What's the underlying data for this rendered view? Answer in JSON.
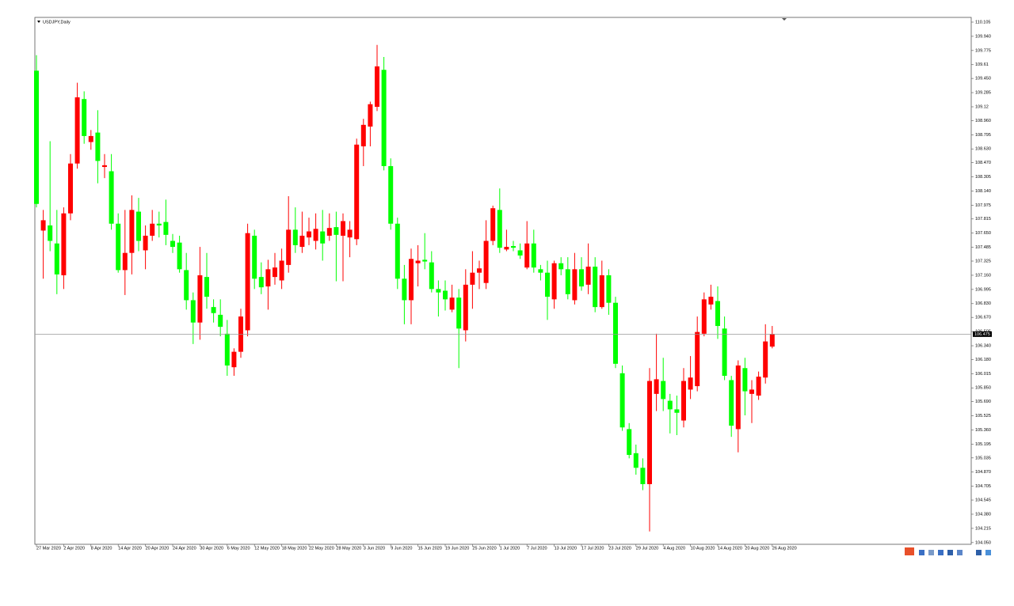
{
  "chart_data": {
    "type": "candlestick",
    "title": "USDJPY,Daily",
    "up_color": "#ff0000",
    "down_color": "#00ff00",
    "grid": false,
    "current_price": 106.475,
    "ylim": [
      104.03,
      110.16
    ],
    "yticks": [
      110.105,
      {
        "value": 109.94,
        "label": "109.940"
      },
      109.775,
      109.61,
      {
        "value": 109.45,
        "label": "109.450"
      },
      109.285,
      109.12,
      {
        "value": 108.96,
        "label": "108.960"
      },
      108.795,
      {
        "value": 108.63,
        "label": "108.630"
      },
      {
        "value": 108.47,
        "label": "108.470"
      },
      108.305,
      {
        "value": 108.14,
        "label": "108.140"
      },
      107.975,
      107.815,
      {
        "value": 107.65,
        "label": "107.650"
      },
      107.485,
      107.325,
      {
        "value": 107.16,
        "label": "107.160"
      },
      106.995,
      {
        "value": 106.83,
        "label": "106.830"
      },
      {
        "value": 106.67,
        "label": "106.670"
      },
      106.505,
      {
        "value": 106.34,
        "label": "106.340"
      },
      {
        "value": 106.18,
        "label": "106.180"
      },
      106.015,
      {
        "value": 105.85,
        "label": "105.850"
      },
      {
        "value": 105.69,
        "label": "105.690"
      },
      105.525,
      {
        "value": 105.36,
        "label": "105.360"
      },
      105.195,
      105.035,
      {
        "value": 104.87,
        "label": "104.870"
      },
      104.705,
      104.545,
      {
        "value": 104.38,
        "label": "104.380"
      },
      104.215,
      {
        "value": 104.05,
        "label": "104.050"
      }
    ],
    "categories": [
      "27 Mar 2020",
      null,
      null,
      null,
      "2 Apr 2020",
      null,
      null,
      null,
      "8 Apr 2020",
      null,
      null,
      null,
      "14 Apr 2020",
      null,
      null,
      null,
      "20 Apr 2020",
      null,
      null,
      null,
      "24 Apr 2020",
      null,
      null,
      null,
      "30 Apr 2020",
      null,
      null,
      null,
      "6 May 2020",
      null,
      null,
      null,
      "12 May 2020",
      null,
      null,
      null,
      "18 May 2020",
      null,
      null,
      null,
      "22 May 2020",
      null,
      null,
      null,
      "28 May 2020",
      null,
      null,
      null,
      "3 Jun 2020",
      null,
      null,
      null,
      "9 Jun 2020",
      null,
      null,
      null,
      "15 Jun 2020",
      null,
      null,
      null,
      "19 Jun 2020",
      null,
      null,
      null,
      "25 Jun 2020",
      null,
      null,
      null,
      "1 Jul 2020",
      null,
      null,
      null,
      "7 Jul 2020",
      null,
      null,
      null,
      "13 Jul 2020",
      null,
      null,
      null,
      "17 Jul 2020",
      null,
      null,
      null,
      "23 Jul 2020",
      null,
      null,
      null,
      "29 Jul 2020",
      null,
      null,
      null,
      "4 Aug 2020",
      null,
      null,
      null,
      "10 Aug 2020",
      null,
      null,
      null,
      "14 Aug 2020",
      null,
      null,
      null,
      "20 Aug 2020",
      null,
      null,
      null,
      "26 Aug 2020"
    ],
    "open": [
      109.54,
      107.68,
      107.74,
      107.53,
      107.16,
      107.88,
      108.46,
      109.21,
      108.71,
      108.82,
      108.42,
      108.37,
      107.76,
      107.22,
      107.42,
      107.9,
      107.45,
      107.62,
      107.76,
      107.78,
      107.56,
      107.54,
      107.22,
      106.87,
      106.61,
      107.14,
      106.79,
      106.7,
      106.48,
      106.09,
      106.27,
      106.52,
      107.62,
      107.14,
      107.03,
      107.14,
      107.1,
      107.28,
      107.69,
      107.49,
      107.6,
      107.56,
      107.67,
      107.62,
      107.72,
      107.62,
      107.6,
      107.58,
      108.66,
      108.89,
      109.12,
      109.55,
      108.43,
      107.76,
      107.12,
      106.87,
      107.3,
      107.34,
      107.31,
      107.0,
      106.98,
      106.76,
      106.9,
      106.52,
      107.05,
      107.19,
      107.07,
      107.56,
      107.92,
      107.46,
      107.5,
      107.45,
      107.25,
      107.53,
      107.23,
      107.19,
      106.88,
      107.3,
      107.23,
      106.87,
      107.23,
      107.05,
      107.26,
      106.79,
      107.16,
      106.84,
      106.02,
      105.37,
      105.09,
      104.92,
      104.73,
      105.78,
      105.93,
      105.7,
      105.6,
      105.47,
      105.83,
      105.87,
      106.48,
      106.82,
      106.86,
      106.54,
      105.94,
      105.37,
      106.08,
      105.78,
      105.76,
      105.97,
      106.33
    ],
    "high": [
      109.72,
      107.92,
      108.72,
      107.92,
      107.95,
      108.57,
      109.4,
      109.3,
      108.85,
      109.08,
      108.57,
      108.57,
      107.88,
      107.92,
      108.09,
      108.06,
      107.74,
      107.92,
      107.9,
      108.04,
      107.64,
      107.62,
      107.42,
      106.96,
      107.49,
      107.42,
      106.88,
      106.88,
      106.64,
      106.31,
      106.77,
      107.76,
      107.69,
      107.31,
      107.34,
      107.42,
      107.47,
      108.08,
      107.95,
      107.9,
      107.83,
      107.88,
      107.92,
      107.88,
      107.9,
      107.88,
      107.79,
      108.75,
      108.98,
      109.18,
      109.84,
      109.7,
      108.52,
      107.83,
      107.28,
      107.47,
      107.51,
      107.65,
      107.44,
      107.1,
      107.1,
      107.05,
      107.0,
      107.23,
      107.44,
      107.33,
      107.8,
      107.97,
      108.17,
      107.69,
      107.56,
      107.53,
      107.79,
      107.69,
      107.28,
      107.33,
      107.33,
      107.37,
      107.37,
      107.42,
      107.37,
      107.53,
      107.37,
      107.33,
      107.23,
      106.91,
      106.11,
      105.44,
      105.19,
      105.03,
      106.08,
      106.48,
      106.2,
      105.78,
      105.76,
      106.08,
      106.22,
      106.68,
      106.96,
      107.05,
      107.03,
      106.68,
      105.99,
      106.17,
      106.2,
      105.94,
      106.04,
      106.59,
      106.57
    ],
    "low": [
      107.95,
      107.12,
      107.44,
      106.94,
      107.0,
      107.8,
      108.4,
      108.69,
      108.62,
      108.23,
      108.29,
      107.69,
      107.19,
      106.93,
      107.17,
      107.44,
      107.23,
      107.56,
      107.6,
      107.51,
      107.42,
      107.19,
      106.76,
      106.36,
      106.41,
      106.77,
      106.61,
      106.45,
      105.99,
      105.99,
      106.2,
      106.45,
      107.0,
      106.94,
      106.76,
      107.05,
      107.0,
      107.19,
      107.42,
      107.42,
      107.51,
      107.46,
      107.33,
      107.56,
      107.09,
      107.09,
      107.37,
      107.51,
      108.43,
      108.66,
      109.07,
      108.38,
      107.69,
      107.0,
      106.59,
      106.59,
      107.03,
      107.23,
      106.96,
      106.68,
      106.75,
      106.73,
      106.08,
      106.39,
      106.77,
      107.0,
      107.0,
      107.51,
      107.42,
      107.44,
      107.44,
      107.35,
      107.23,
      107.19,
      107.1,
      106.64,
      106.77,
      107.16,
      106.88,
      106.82,
      106.98,
      106.94,
      106.73,
      106.77,
      106.7,
      106.08,
      105.35,
      105.03,
      104.84,
      104.66,
      104.18,
      105.58,
      105.58,
      105.32,
      105.3,
      105.39,
      105.72,
      105.81,
      106.45,
      106.76,
      106.42,
      105.94,
      105.28,
      105.1,
      105.53,
      105.44,
      105.71,
      105.9,
      106.31
    ],
    "close": [
      107.99,
      107.8,
      107.56,
      107.17,
      107.88,
      108.46,
      109.23,
      108.78,
      108.78,
      108.49,
      108.44,
      107.76,
      107.22,
      107.42,
      107.92,
      107.56,
      107.62,
      107.76,
      107.74,
      107.63,
      107.49,
      107.23,
      106.87,
      106.61,
      107.16,
      106.91,
      106.72,
      106.56,
      106.11,
      106.27,
      106.68,
      107.65,
      107.12,
      107.02,
      107.23,
      107.25,
      107.33,
      107.69,
      107.51,
      107.62,
      107.67,
      107.7,
      107.53,
      107.71,
      107.63,
      107.79,
      107.69,
      108.68,
      108.91,
      109.15,
      109.59,
      108.43,
      107.76,
      107.12,
      106.87,
      107.35,
      107.33,
      107.32,
      107.0,
      106.96,
      106.88,
      106.9,
      106.54,
      107.05,
      107.19,
      107.24,
      107.56,
      107.94,
      107.48,
      107.49,
      107.48,
      107.39,
      107.53,
      107.25,
      107.19,
      106.91,
      107.3,
      107.23,
      106.94,
      107.23,
      107.03,
      107.26,
      106.79,
      107.16,
      106.84,
      106.13,
      105.39,
      105.07,
      104.92,
      104.73,
      105.93,
      105.95,
      105.72,
      105.6,
      105.56,
      105.93,
      105.97,
      106.5,
      106.88,
      106.91,
      106.57,
      105.99,
      105.41,
      106.11,
      105.81,
      105.83,
      105.98,
      106.39,
      106.475
    ]
  }
}
